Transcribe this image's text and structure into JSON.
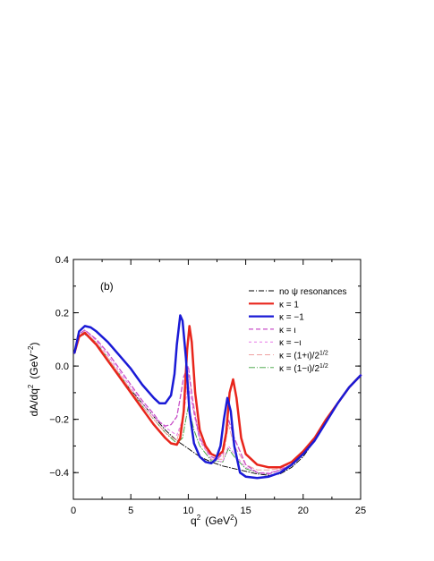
{
  "chart_data": {
    "type": "line",
    "panel_label": "(b)",
    "xlabel": {
      "base": "q",
      "sup": "2",
      "unit_open": "(GeV",
      "unit_sup": "2",
      "unit_close": ")"
    },
    "ylabel": {
      "base": "dA/dq",
      "sup": "2",
      "unit_open": "(GeV",
      "unit_sup": "−2",
      "unit_close": ")"
    },
    "xlim": [
      0,
      25
    ],
    "ylim": [
      -0.5,
      0.4
    ],
    "x_ticks": [
      0,
      5,
      10,
      15,
      20,
      25
    ],
    "x_tick_labels": [
      "0",
      "5",
      "10",
      "15",
      "20",
      "25"
    ],
    "y_ticks": [
      -0.4,
      -0.2,
      0.0,
      0.2,
      0.4
    ],
    "y_tick_labels": [
      "−0.4",
      "−0.2",
      "0.0",
      "0.2",
      "0.4"
    ],
    "grid": false,
    "legend_position": "right",
    "series": [
      {
        "name": "no ψ resonances",
        "legend": {
          "main": "no ψ resonances",
          "sup": ""
        },
        "color": "#000000",
        "width": 0.9,
        "dash": "6,2,1,2",
        "x": [
          0.1,
          0.5,
          1.0,
          2.0,
          3.0,
          4.0,
          5.0,
          6.0,
          7.0,
          8.0,
          9.0,
          10.0,
          11.0,
          12.0,
          13.0,
          14.0,
          15.0,
          16.0,
          17.0,
          18.0,
          19.0,
          20.0,
          21.0,
          22.0,
          23.0,
          24.0,
          25.0
        ],
        "y": [
          0.05,
          0.11,
          0.12,
          0.08,
          0.02,
          -0.04,
          -0.09,
          -0.14,
          -0.19,
          -0.24,
          -0.28,
          -0.31,
          -0.34,
          -0.36,
          -0.375,
          -0.385,
          -0.395,
          -0.405,
          -0.41,
          -0.405,
          -0.38,
          -0.34,
          -0.28,
          -0.21,
          -0.14,
          -0.08,
          -0.035
        ]
      },
      {
        "name": "κ = 1",
        "legend": {
          "main": "κ = 1",
          "sup": ""
        },
        "color": "#e8251b",
        "width": 2.5,
        "dash": "",
        "x": [
          0.1,
          0.5,
          1.0,
          2.0,
          3.0,
          4.0,
          5.0,
          6.0,
          7.0,
          8.0,
          8.5,
          9.0,
          9.3,
          9.6,
          9.9,
          10.1,
          10.3,
          10.6,
          11.0,
          11.5,
          12.0,
          12.5,
          13.0,
          13.3,
          13.6,
          13.9,
          14.2,
          14.6,
          15.0,
          16.0,
          17.0,
          18.0,
          19.0,
          20.0,
          21.0,
          22.0,
          23.0,
          24.0,
          25.0
        ],
        "y": [
          0.05,
          0.11,
          0.125,
          0.08,
          0.02,
          -0.04,
          -0.1,
          -0.16,
          -0.22,
          -0.27,
          -0.29,
          -0.295,
          -0.27,
          -0.17,
          0.06,
          0.15,
          0.09,
          -0.1,
          -0.24,
          -0.3,
          -0.33,
          -0.34,
          -0.32,
          -0.25,
          -0.1,
          -0.05,
          -0.12,
          -0.27,
          -0.33,
          -0.37,
          -0.38,
          -0.38,
          -0.36,
          -0.32,
          -0.27,
          -0.2,
          -0.14,
          -0.08,
          -0.035
        ]
      },
      {
        "name": "κ = −1",
        "legend": {
          "main": "κ = −1",
          "sup": ""
        },
        "color": "#1a1ad6",
        "width": 2.5,
        "dash": "",
        "x": [
          0.1,
          0.5,
          1.0,
          1.5,
          2.0,
          3.0,
          4.0,
          5.0,
          6.0,
          7.0,
          7.5,
          8.0,
          8.5,
          8.8,
          9.0,
          9.3,
          9.5,
          9.8,
          10.1,
          10.5,
          11.0,
          11.5,
          12.0,
          12.4,
          12.8,
          13.1,
          13.4,
          13.7,
          14.0,
          14.5,
          15.0,
          16.0,
          17.0,
          18.0,
          19.0,
          20.0,
          21.0,
          22.0,
          23.0,
          24.0,
          25.0
        ],
        "y": [
          0.05,
          0.13,
          0.15,
          0.145,
          0.13,
          0.09,
          0.04,
          -0.01,
          -0.07,
          -0.12,
          -0.14,
          -0.14,
          -0.11,
          -0.03,
          0.08,
          0.19,
          0.17,
          0.03,
          -0.17,
          -0.29,
          -0.34,
          -0.36,
          -0.365,
          -0.35,
          -0.3,
          -0.2,
          -0.12,
          -0.17,
          -0.3,
          -0.4,
          -0.415,
          -0.42,
          -0.415,
          -0.4,
          -0.37,
          -0.33,
          -0.28,
          -0.21,
          -0.14,
          -0.08,
          -0.035
        ]
      },
      {
        "name": "κ = ι",
        "legend": {
          "main": "κ = ι",
          "sup": ""
        },
        "color": "#c84fc8",
        "width": 1.3,
        "dash": "5,3",
        "x": [
          0.1,
          0.5,
          1.0,
          2.0,
          3.0,
          4.0,
          5.0,
          6.0,
          7.0,
          7.5,
          8.0,
          8.5,
          9.0,
          9.3,
          9.6,
          10.0,
          10.5,
          11.0,
          12.0,
          12.5,
          13.0,
          13.5,
          14.0,
          15.0,
          16.0,
          17.0,
          18.0,
          19.0,
          20.0,
          21.0,
          22.0,
          23.0,
          24.0,
          25.0
        ],
        "y": [
          0.05,
          0.12,
          0.135,
          0.1,
          0.05,
          -0.01,
          -0.07,
          -0.13,
          -0.18,
          -0.21,
          -0.225,
          -0.22,
          -0.19,
          -0.12,
          -0.04,
          0.0,
          -0.17,
          -0.27,
          -0.34,
          -0.35,
          -0.33,
          -0.2,
          -0.27,
          -0.37,
          -0.4,
          -0.405,
          -0.39,
          -0.37,
          -0.33,
          -0.27,
          -0.21,
          -0.14,
          -0.08,
          -0.035
        ]
      },
      {
        "name": "κ = −ι",
        "legend": {
          "main": "κ = −ι",
          "sup": ""
        },
        "color": "#e87ae8",
        "width": 1.0,
        "dash": "3,3",
        "x": [
          0.1,
          0.5,
          1.0,
          2.0,
          3.0,
          4.0,
          5.0,
          6.0,
          7.0,
          8.0,
          9.0,
          9.5,
          10.0,
          10.5,
          11.0,
          12.0,
          13.0,
          13.5,
          14.0,
          15.0,
          16.0,
          17.0,
          18.0,
          19.0,
          20.0,
          21.0,
          22.0,
          23.0,
          24.0,
          25.0
        ],
        "y": [
          0.05,
          0.12,
          0.135,
          0.095,
          0.04,
          -0.02,
          -0.08,
          -0.14,
          -0.19,
          -0.23,
          -0.26,
          -0.2,
          -0.07,
          -0.18,
          -0.28,
          -0.35,
          -0.36,
          -0.3,
          -0.33,
          -0.38,
          -0.4,
          -0.4,
          -0.39,
          -0.36,
          -0.33,
          -0.27,
          -0.21,
          -0.14,
          -0.08,
          -0.035
        ]
      },
      {
        "name": "κ = (1+ι)/2^(1/2)",
        "legend": {
          "main": "κ = (1+ι)/2",
          "sup": "1/2"
        },
        "color": "#f0a0a0",
        "width": 1.0,
        "dash": "6,3",
        "x": [
          0.1,
          0.5,
          1.0,
          2.0,
          3.0,
          4.0,
          5.0,
          6.0,
          7.0,
          8.0,
          9.0,
          9.5,
          10.0,
          10.5,
          11.0,
          12.0,
          13.0,
          13.5,
          14.0,
          15.0,
          16.0,
          17.0,
          18.0,
          19.0,
          20.0,
          21.0,
          22.0,
          23.0,
          24.0,
          25.0
        ],
        "y": [
          0.05,
          0.115,
          0.128,
          0.088,
          0.03,
          -0.03,
          -0.09,
          -0.15,
          -0.2,
          -0.25,
          -0.28,
          -0.2,
          -0.03,
          -0.15,
          -0.27,
          -0.35,
          -0.35,
          -0.22,
          -0.3,
          -0.37,
          -0.39,
          -0.39,
          -0.385,
          -0.36,
          -0.32,
          -0.27,
          -0.21,
          -0.14,
          -0.08,
          -0.035
        ]
      },
      {
        "name": "κ = (1−ι)/2^(1/2)",
        "legend": {
          "main": "κ = (1−ι)/2",
          "sup": "1/2"
        },
        "color": "#3aa03a",
        "width": 0.9,
        "dash": "7,2,1,2",
        "x": [
          0.1,
          0.5,
          1.0,
          2.0,
          3.0,
          4.0,
          5.0,
          6.0,
          7.0,
          8.0,
          9.0,
          9.5,
          10.0,
          10.5,
          11.0,
          12.0,
          13.0,
          13.5,
          14.0,
          15.0,
          16.0,
          17.0,
          18.0,
          19.0,
          20.0,
          21.0,
          22.0,
          23.0,
          24.0,
          25.0
        ],
        "y": [
          0.05,
          0.115,
          0.128,
          0.088,
          0.03,
          -0.03,
          -0.09,
          -0.15,
          -0.2,
          -0.25,
          -0.29,
          -0.27,
          -0.15,
          -0.24,
          -0.3,
          -0.355,
          -0.36,
          -0.31,
          -0.34,
          -0.385,
          -0.4,
          -0.405,
          -0.39,
          -0.37,
          -0.33,
          -0.27,
          -0.21,
          -0.14,
          -0.08,
          -0.035
        ]
      }
    ]
  }
}
